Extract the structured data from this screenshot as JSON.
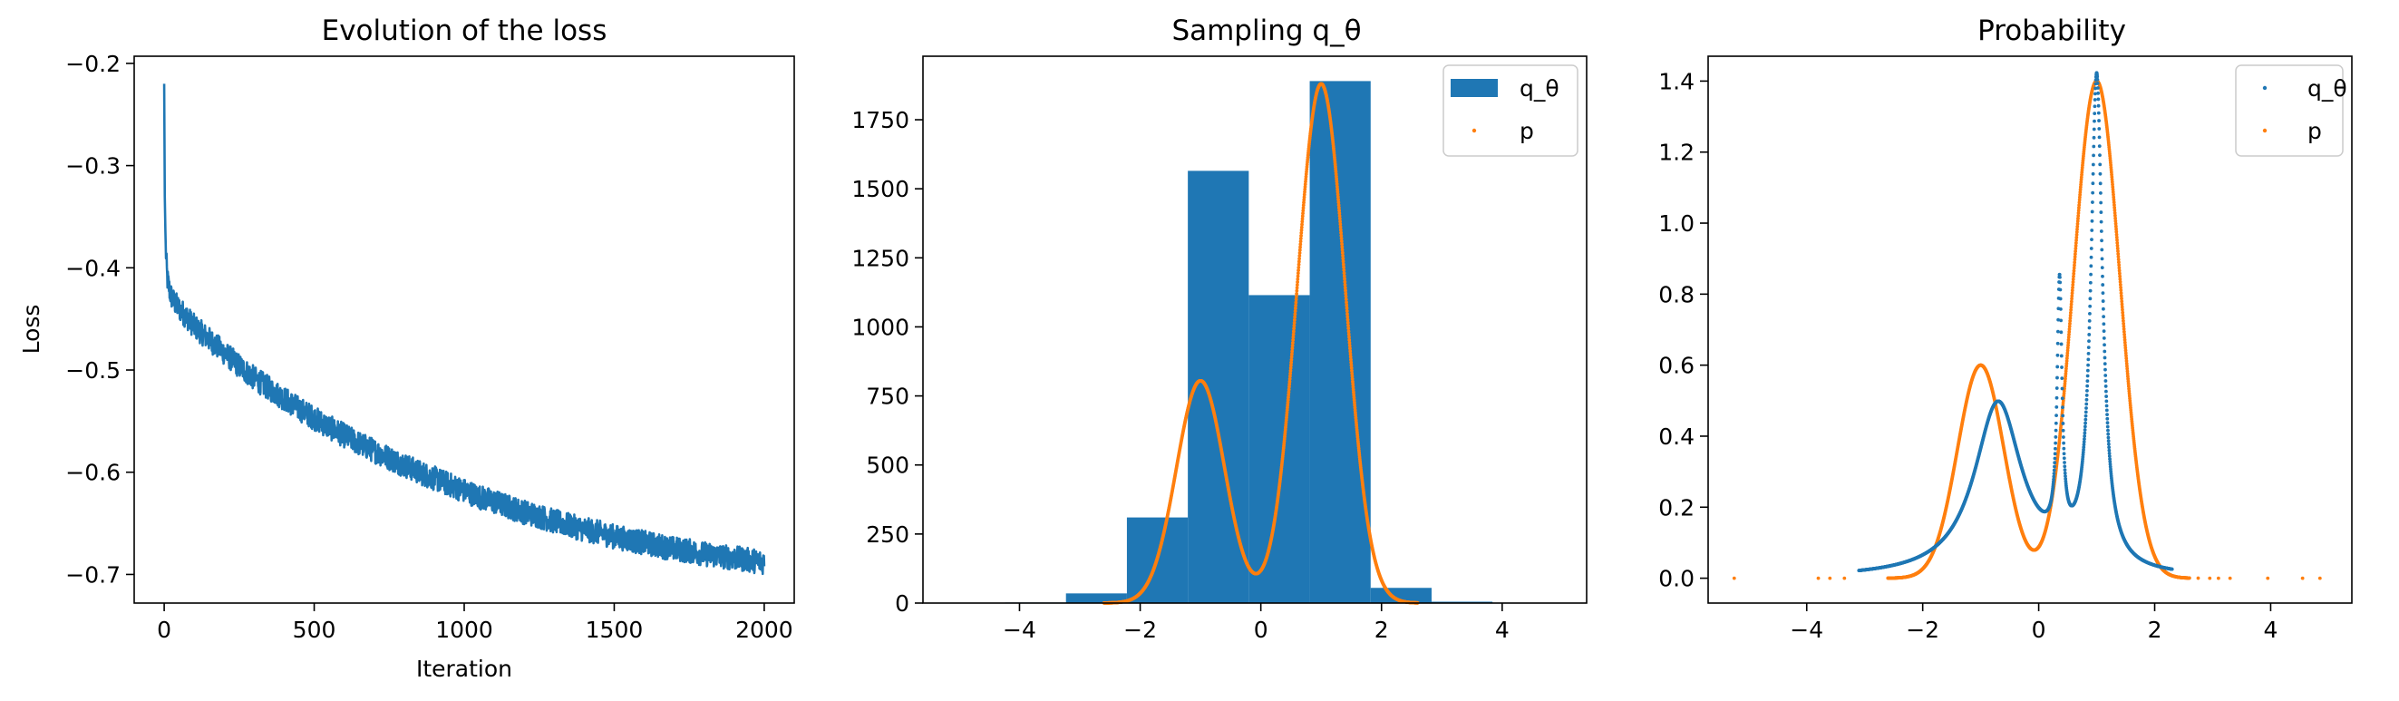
{
  "colors": {
    "blue": "#1f77b4",
    "orange": "#ff7f0e"
  },
  "chart_data": [
    {
      "type": "line",
      "title": "Evolution of the loss",
      "xlabel": "Iteration",
      "ylabel": "Loss",
      "xlim": [
        -100,
        2100
      ],
      "ylim": [
        -0.728,
        -0.193
      ],
      "xticks": [
        0,
        500,
        1000,
        1500,
        2000
      ],
      "xtick_labels": [
        "0",
        "500",
        "1000",
        "1500",
        "2000"
      ],
      "yticks": [
        -0.7,
        -0.6,
        -0.5,
        -0.4,
        -0.3,
        -0.2
      ],
      "ytick_labels": [
        "−0.7",
        "−0.6",
        "−0.5",
        "−0.4",
        "−0.3",
        "−0.2"
      ],
      "grid": false,
      "series": [
        {
          "color": "#1f77b4",
          "noise_band": 0.012,
          "x": [
            0,
            2,
            5,
            10,
            20,
            30,
            50,
            75,
            100,
            150,
            200,
            250,
            300,
            350,
            400,
            450,
            500,
            550,
            600,
            650,
            700,
            750,
            800,
            850,
            900,
            950,
            1000,
            1050,
            1100,
            1150,
            1200,
            1250,
            1300,
            1350,
            1400,
            1450,
            1500,
            1550,
            1600,
            1650,
            1700,
            1750,
            1800,
            1850,
            1900,
            1950,
            2000
          ],
          "y": [
            -0.22,
            -0.33,
            -0.38,
            -0.41,
            -0.425,
            -0.432,
            -0.44,
            -0.448,
            -0.457,
            -0.47,
            -0.483,
            -0.496,
            -0.508,
            -0.518,
            -0.528,
            -0.538,
            -0.547,
            -0.556,
            -0.564,
            -0.572,
            -0.579,
            -0.586,
            -0.593,
            -0.6,
            -0.606,
            -0.612,
            -0.618,
            -0.624,
            -0.629,
            -0.634,
            -0.639,
            -0.643,
            -0.648,
            -0.652,
            -0.656,
            -0.659,
            -0.663,
            -0.666,
            -0.669,
            -0.672,
            -0.675,
            -0.677,
            -0.68,
            -0.682,
            -0.684,
            -0.686,
            -0.688
          ]
        }
      ]
    },
    {
      "type": "bar",
      "title": "Sampling q_θ",
      "xlim": [
        -5.6,
        5.4
      ],
      "ylim": [
        0,
        1980
      ],
      "xticks": [
        -4,
        -2,
        0,
        2,
        4
      ],
      "xtick_labels": [
        "−4",
        "−2",
        "0",
        "2",
        "4"
      ],
      "yticks": [
        0,
        250,
        500,
        750,
        1000,
        1250,
        1500,
        1750
      ],
      "ytick_labels": [
        "0",
        "250",
        "500",
        "750",
        "1000",
        "1250",
        "1500",
        "1750"
      ],
      "grid": false,
      "legend": "top-right",
      "series": [
        {
          "name": "q_θ",
          "kind": "hist",
          "color": "#1f77b4",
          "bin_edges": [
            -5.25,
            -4.24,
            -3.23,
            -2.22,
            -1.21,
            -0.2,
            0.81,
            1.82,
            2.83,
            3.84,
            4.85
          ],
          "values": [
            1,
            2,
            35,
            310,
            1565,
            1115,
            1890,
            55,
            5,
            1
          ]
        },
        {
          "name": "p",
          "kind": "density-scaled",
          "color": "#ff7f0e",
          "x_range": [
            -2.6,
            2.6
          ],
          "modes": [
            {
              "mean": -1,
              "sd": 0.4,
              "peak": 805
            },
            {
              "mean": 1,
              "sd": 0.4,
              "peak": 1880
            }
          ]
        }
      ]
    },
    {
      "type": "scatter",
      "title": "Probability",
      "xlim": [
        -5.7,
        5.4
      ],
      "ylim": [
        -0.07,
        1.47
      ],
      "xticks": [
        -4,
        -2,
        0,
        2,
        4
      ],
      "xtick_labels": [
        "−4",
        "−2",
        "0",
        "2",
        "4"
      ],
      "yticks": [
        0.0,
        0.2,
        0.4,
        0.6,
        0.8,
        1.0,
        1.2,
        1.4
      ],
      "ytick_labels": [
        "0.0",
        "0.2",
        "0.4",
        "0.6",
        "0.8",
        "1.0",
        "1.2",
        "1.4"
      ],
      "grid": false,
      "legend": "top-right",
      "series": [
        {
          "name": "q_θ",
          "color": "#1f77b4",
          "x_range": [
            -3.1,
            2.3
          ],
          "components": [
            {
              "mean": -0.7,
              "width": 0.5,
              "peak": 0.49
            },
            {
              "mean": 0.36,
              "width": 0.05,
              "peak": 0.72
            },
            {
              "mean": 1.0,
              "width": 0.12,
              "peak": 1.38
            }
          ]
        },
        {
          "name": "p",
          "color": "#ff7f0e",
          "x_range": [
            -2.6,
            2.6
          ],
          "modes": [
            {
              "mean": -1,
              "sd": 0.4,
              "peak": 0.6
            },
            {
              "mean": 1,
              "sd": 0.4,
              "peak": 1.4
            }
          ],
          "outliers_x": [
            -5.25,
            -3.8,
            -3.6,
            -3.35,
            2.75,
            2.95,
            3.1,
            3.3,
            3.95,
            4.55,
            4.85
          ]
        }
      ]
    }
  ]
}
